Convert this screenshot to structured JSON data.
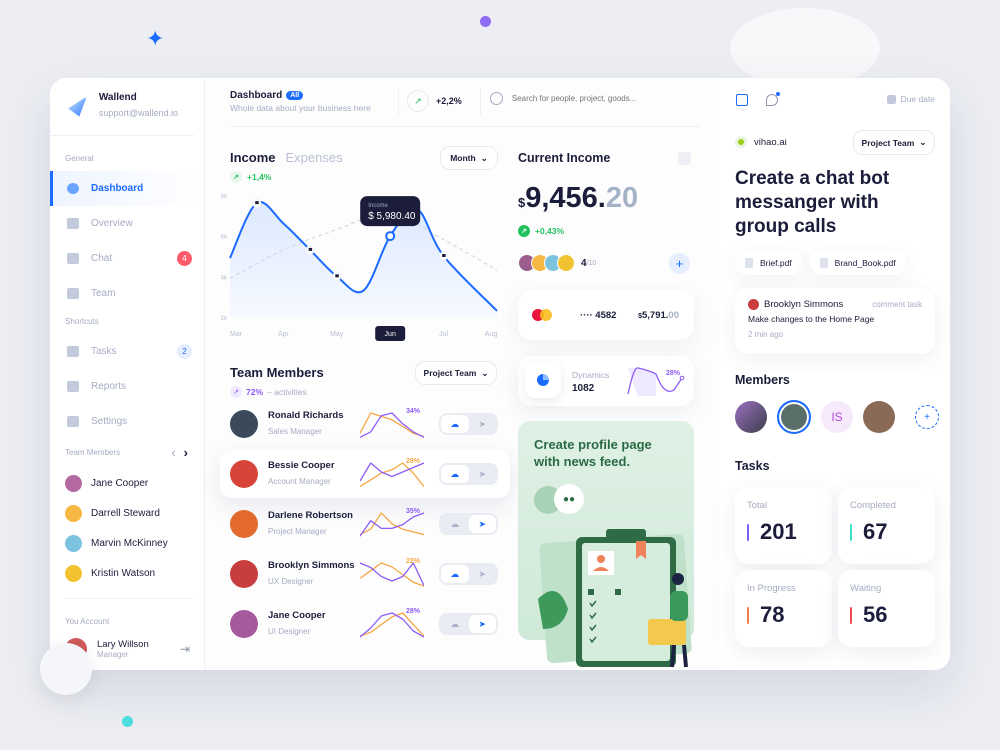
{
  "brand": {
    "name": "Wallend",
    "email": "support@wallend.io"
  },
  "sidebar": {
    "general_label": "General",
    "general": [
      {
        "label": "Dashboard",
        "active": true
      },
      {
        "label": "Overview"
      },
      {
        "label": "Chat",
        "badge": "4",
        "badge_color": "#ff5b6b"
      },
      {
        "label": "Team"
      }
    ],
    "shortcuts_label": "Shortcuts",
    "shortcuts": [
      {
        "label": "Tasks",
        "badge": "2",
        "badge_color": "#e5eeff"
      },
      {
        "label": "Reports"
      },
      {
        "label": "Settings"
      }
    ],
    "team_label": "Team Members",
    "team": [
      {
        "name": "Jane Cooper",
        "color": "#b46aa0"
      },
      {
        "name": "Darrell Steward",
        "color": "#f5b843"
      },
      {
        "name": "Marvin McKinney",
        "color": "#7cc3e0"
      },
      {
        "name": "Kristin Watson",
        "color": "#f2c230"
      }
    ],
    "account_label": "You Account",
    "account": {
      "name": "Lary Willson",
      "role": "Manager"
    }
  },
  "header": {
    "title": "Dashboard",
    "badge": "All",
    "subtitle": "Whole data about your business here",
    "trend": "+2,2%",
    "search_placeholder": "Search for people, project, goods..."
  },
  "income": {
    "tab_active": "Income",
    "tab_inactive": "Expenses",
    "change": "+1,4%",
    "period": "Month",
    "tooltip_label": "Income",
    "tooltip_value": "$ 5,980.40"
  },
  "chart_data": {
    "type": "line",
    "x_ticks": [
      "Mar",
      "Apr",
      "May",
      "Jun",
      "Jul",
      "Aug"
    ],
    "y_ticks": [
      "8k",
      "6k",
      "4k",
      "2k"
    ],
    "ylim": [
      2,
      8
    ],
    "selected_tick": "Jun",
    "series": [
      {
        "name": "Income",
        "x": [
          0,
          0.5,
          1,
          1.5,
          2,
          2.5,
          3,
          3.5,
          4,
          5
        ],
        "y": [
          4.9,
          7.6,
          6.6,
          5.3,
          4.0,
          3.3,
          5.98,
          7.3,
          5.0,
          2.3
        ]
      },
      {
        "y_dashed": true,
        "x": [
          0,
          1,
          2,
          3,
          4,
          5
        ],
        "y": [
          3.9,
          5.3,
          6.3,
          7.1,
          5.8,
          4.3
        ]
      }
    ]
  },
  "team_members": {
    "title": "Team Members",
    "filter": "Project Team",
    "activity": "72%",
    "activity_label": "– activities",
    "rows": [
      {
        "name": "Ronald Richards",
        "role": "Sales Manager",
        "pct": "34%",
        "pct_color": "#8e5cf7",
        "color": "#3a4a5a",
        "active": 0,
        "p": [
          1,
          3,
          9,
          10,
          6,
          3,
          1
        ],
        "o": [
          2,
          8,
          7,
          6,
          4,
          2,
          1
        ]
      },
      {
        "name": "Bessie Cooper",
        "role": "Account Manager",
        "pct": "28%",
        "pct_color": "#f5a742",
        "color": "#d7453a",
        "active": 0,
        "p": [
          2,
          6,
          4,
          3,
          4,
          5,
          6
        ],
        "o": [
          1,
          3,
          5,
          6,
          8,
          5,
          1
        ]
      },
      {
        "name": "Darlene Robertson",
        "role": "Project Manager",
        "pct": "35%",
        "pct_color": "#8e5cf7",
        "color": "#e26a2c",
        "active": 1,
        "p": [
          1,
          5,
          3,
          3,
          4,
          6,
          7
        ],
        "o": [
          2,
          4,
          10,
          6,
          4,
          3,
          2
        ]
      },
      {
        "name": "Brooklyn Simmons",
        "role": "UX Designer",
        "pct": "22%",
        "pct_color": "#f5a742",
        "color": "#c83d3d",
        "active": 0,
        "p": [
          6,
          5,
          3,
          2,
          3,
          6,
          1
        ],
        "o": [
          3,
          5,
          7,
          6,
          4,
          2,
          1
        ]
      },
      {
        "name": "Jane Cooper",
        "role": "UI Designer",
        "pct": "28%",
        "pct_color": "#8e5cf7",
        "color": "#a45a9c",
        "active": 1,
        "p": [
          1,
          4,
          8,
          9,
          7,
          3,
          1
        ],
        "o": [
          1,
          2,
          4,
          6,
          7,
          4,
          1
        ]
      }
    ]
  },
  "current_income": {
    "title": "Current Income",
    "currency": "$",
    "whole": "9,456.",
    "cents": "20",
    "change": "+0,43%",
    "count": "4",
    "count_total": "/10"
  },
  "card": {
    "number": "···· 4582",
    "currency": "$",
    "amount": "5,791.",
    "cents": "00"
  },
  "dynamics": {
    "label": "Dynamics",
    "value": "1082",
    "pct": "28%"
  },
  "promo": {
    "title": "Create profile page with news feed."
  },
  "task": {
    "due": "Due date",
    "org": "vihao.ai",
    "filter": "Project Team",
    "title": "Create a chat bot messanger with group calls",
    "files": [
      "Brief.pdf",
      "Brand_Book.pdf"
    ],
    "comment": {
      "author": "Brooklyn Simmons",
      "tag": "comment task",
      "text": "Make changes to the Home Page",
      "time": "2 min ago"
    }
  },
  "members": {
    "title": "Members",
    "initials": "IS"
  },
  "tasks": {
    "title": "Tasks",
    "items": [
      {
        "label": "Total",
        "value": "201",
        "color": "#7b5cf5"
      },
      {
        "label": "Completed",
        "value": "67",
        "color": "#3ee0c8"
      },
      {
        "label": "In Progress",
        "value": "78",
        "color": "#f27b4a"
      },
      {
        "label": "Waiting",
        "value": "56",
        "color": "#ef4a55"
      }
    ]
  },
  "colors": {
    "accent": "#1b6bff",
    "dark": "#1b1d3a",
    "green": "#21c25e"
  }
}
